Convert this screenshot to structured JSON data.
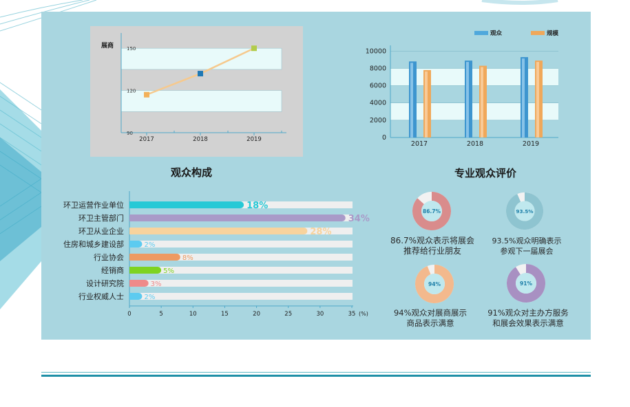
{
  "colors": {
    "panel": "#a9d6e0",
    "audience": "#4fa8dc",
    "scale": "#f0a85a",
    "line": "#f6c98d",
    "band": "#e8fafa",
    "frame": "#d2d2d2"
  },
  "titles": {
    "composition": "观众构成",
    "evaluation": "专业观众评价"
  },
  "chart_data": [
    {
      "type": "line",
      "ylabel": "展商",
      "x": [
        "2017",
        "2018",
        "2019"
      ],
      "values": [
        117,
        132,
        150
      ],
      "marker_colors": [
        "#f2b15a",
        "#1f78b4",
        "#b2cc4a"
      ],
      "yticks": [
        90,
        120,
        150
      ],
      "ylim": [
        90,
        155
      ]
    },
    {
      "type": "bar",
      "categories": [
        "2017",
        "2018",
        "2019"
      ],
      "series": [
        {
          "name": "观众",
          "values": [
            8800,
            8900,
            9300
          ]
        },
        {
          "name": "规模",
          "values": [
            7800,
            8300,
            8900
          ]
        }
      ],
      "yticks": [
        0,
        2000,
        4000,
        6000,
        8000,
        10000
      ],
      "ylim": [
        0,
        10500
      ],
      "legend": "top-right"
    },
    {
      "type": "bar",
      "orientation": "horizontal",
      "title": "观众构成",
      "categories": [
        "环卫运营作业单位",
        "环卫主管部门",
        "环卫从业企业",
        "住房和城乡建设部",
        "行业协会",
        "经销商",
        "设计研究院",
        "行业权威人士"
      ],
      "values": [
        18,
        34,
        28,
        2,
        8,
        5,
        3,
        2
      ],
      "labels": [
        "18%",
        "34%",
        "28%",
        "2%",
        "8%",
        "5%",
        "3%",
        "2%"
      ],
      "colors": [
        "#26c9d6",
        "#a99ac8",
        "#f8d39d",
        "#5ccbf0",
        "#ee9a62",
        "#7ed321",
        "#ef8a8a",
        "#5ccbf0"
      ],
      "xticks": [
        0,
        5,
        10,
        15,
        20,
        25,
        30,
        35
      ],
      "xunit": "(%)",
      "xlim": [
        0,
        35
      ]
    },
    {
      "type": "pie",
      "title": "专业观众评价",
      "items": [
        {
          "value": 86.7,
          "label": "86.7%",
          "caption_lines": [
            "86.7%观众表示将展会",
            "推荐给行业朋友"
          ],
          "color": "#d98c8c"
        },
        {
          "value": 93.5,
          "label": "93.5%",
          "caption_lines": [
            "93.5%观众明确表示",
            "参观下一届展会"
          ],
          "color": "#8ec4d0"
        },
        {
          "value": 94,
          "label": "94%",
          "caption_lines": [
            "94%观众对展商展示",
            "商品表示满意"
          ],
          "color": "#f3b98d"
        },
        {
          "value": 91,
          "label": "91%",
          "caption_lines": [
            "91%观众对主办方服务",
            "和展会效果表示满意"
          ],
          "color": "#a890c2"
        }
      ]
    }
  ]
}
